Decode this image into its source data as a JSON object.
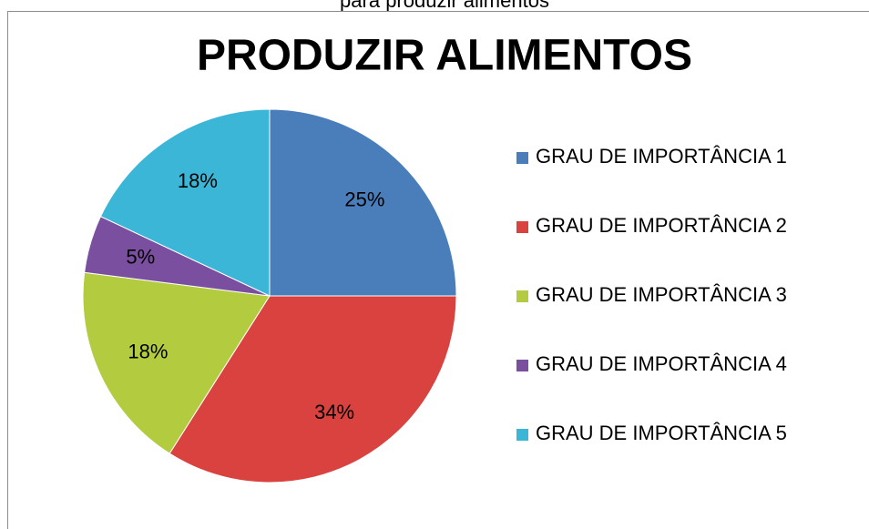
{
  "chart_data": {
    "type": "pie",
    "caption": "para produzir alimentos",
    "title": "PRODUZIR ALIMENTOS",
    "categories": [
      "GRAU DE IMPORTÂNCIA 1",
      "GRAU DE IMPORTÂNCIA 2",
      "GRAU DE IMPORTÂNCIA 3",
      "GRAU DE IMPORTÂNCIA 4",
      "GRAU DE IMPORTÂNCIA 5"
    ],
    "values": [
      25,
      34,
      18,
      5,
      18
    ],
    "value_labels": [
      "25%",
      "34%",
      "18%",
      "5%",
      "18%"
    ],
    "colors": [
      "#4a7ebb",
      "#d9423e",
      "#b3cc3f",
      "#7a4fa0",
      "#3cb6d6"
    ],
    "legend": "right"
  }
}
